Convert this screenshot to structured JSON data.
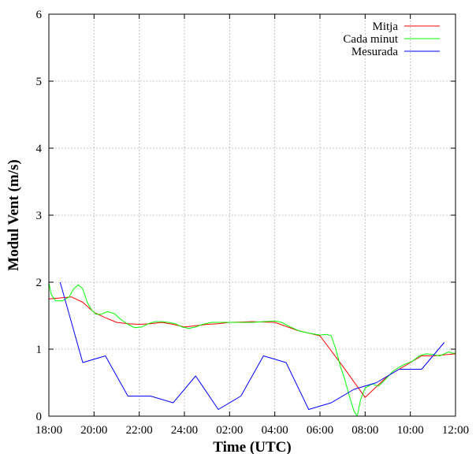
{
  "chart_data": {
    "type": "line",
    "xlabel": "Time (UTC)",
    "ylabel": "Modul Vent (m/s)",
    "xlim": [
      0,
      18
    ],
    "ylim": [
      0,
      6
    ],
    "x_tick_labels": [
      "18:00",
      "20:00",
      "22:00",
      "24:00",
      "02:00",
      "04:00",
      "06:00",
      "08:00",
      "10:00",
      "12:00"
    ],
    "y_tick_labels": [
      "0",
      "1",
      "2",
      "3",
      "4",
      "5",
      "6"
    ],
    "grid": true,
    "legend_position": "top-right",
    "series": [
      {
        "name": "Mitja",
        "color": "#ff0000",
        "points": [
          [
            0.0,
            1.75
          ],
          [
            1.0,
            1.78
          ],
          [
            1.5,
            1.7
          ],
          [
            2.0,
            1.55
          ],
          [
            2.5,
            1.47
          ],
          [
            3.0,
            1.4
          ],
          [
            3.5,
            1.38
          ],
          [
            4.0,
            1.37
          ],
          [
            4.5,
            1.38
          ],
          [
            5.0,
            1.4
          ],
          [
            5.5,
            1.37
          ],
          [
            6.0,
            1.33
          ],
          [
            6.5,
            1.35
          ],
          [
            7.0,
            1.37
          ],
          [
            7.5,
            1.38
          ],
          [
            8.0,
            1.4
          ],
          [
            9.0,
            1.41
          ],
          [
            10.0,
            1.4
          ],
          [
            11.0,
            1.28
          ],
          [
            12.0,
            1.2
          ],
          [
            13.0,
            0.75
          ],
          [
            14.0,
            0.28
          ],
          [
            15.0,
            0.6
          ],
          [
            16.0,
            0.8
          ],
          [
            16.5,
            0.9
          ],
          [
            17.0,
            0.9
          ],
          [
            18.0,
            0.93
          ]
        ]
      },
      {
        "name": "Cada minut",
        "color": "#00ff00",
        "points": [
          [
            0.0,
            2.0
          ],
          [
            0.1,
            1.82
          ],
          [
            0.3,
            1.72
          ],
          [
            0.6,
            1.72
          ],
          [
            0.9,
            1.78
          ],
          [
            1.1,
            1.9
          ],
          [
            1.3,
            1.96
          ],
          [
            1.5,
            1.9
          ],
          [
            1.7,
            1.7
          ],
          [
            1.9,
            1.58
          ],
          [
            2.1,
            1.52
          ],
          [
            2.3,
            1.52
          ],
          [
            2.6,
            1.56
          ],
          [
            2.9,
            1.53
          ],
          [
            3.2,
            1.44
          ],
          [
            3.5,
            1.37
          ],
          [
            3.8,
            1.32
          ],
          [
            4.1,
            1.33
          ],
          [
            4.4,
            1.38
          ],
          [
            4.7,
            1.41
          ],
          [
            5.0,
            1.41
          ],
          [
            5.3,
            1.4
          ],
          [
            5.6,
            1.38
          ],
          [
            5.9,
            1.33
          ],
          [
            6.2,
            1.31
          ],
          [
            6.5,
            1.33
          ],
          [
            6.8,
            1.37
          ],
          [
            7.2,
            1.4
          ],
          [
            7.6,
            1.4
          ],
          [
            8.0,
            1.4
          ],
          [
            8.5,
            1.4
          ],
          [
            9.0,
            1.4
          ],
          [
            9.5,
            1.41
          ],
          [
            10.0,
            1.42
          ],
          [
            10.3,
            1.4
          ],
          [
            10.7,
            1.33
          ],
          [
            11.1,
            1.27
          ],
          [
            11.5,
            1.24
          ],
          [
            12.0,
            1.21
          ],
          [
            12.3,
            1.22
          ],
          [
            12.5,
            1.2
          ],
          [
            12.7,
            1.0
          ],
          [
            12.9,
            0.75
          ],
          [
            13.1,
            0.55
          ],
          [
            13.3,
            0.3
          ],
          [
            13.5,
            0.08
          ],
          [
            13.65,
            0.0
          ],
          [
            13.8,
            0.25
          ],
          [
            14.0,
            0.42
          ],
          [
            14.3,
            0.48
          ],
          [
            14.6,
            0.45
          ],
          [
            14.9,
            0.55
          ],
          [
            15.2,
            0.66
          ],
          [
            15.5,
            0.73
          ],
          [
            15.8,
            0.78
          ],
          [
            16.1,
            0.82
          ],
          [
            16.4,
            0.9
          ],
          [
            16.7,
            0.93
          ],
          [
            17.0,
            0.92
          ],
          [
            17.3,
            0.9
          ],
          [
            17.5,
            0.93
          ],
          [
            17.7,
            0.96
          ],
          [
            17.85,
            0.94
          ],
          [
            18.0,
            0.94
          ]
        ]
      },
      {
        "name": "Mesurada",
        "color": "#0000ff",
        "points": [
          [
            0.5,
            2.0
          ],
          [
            1.5,
            0.8
          ],
          [
            2.5,
            0.9
          ],
          [
            3.5,
            0.3
          ],
          [
            4.5,
            0.3
          ],
          [
            5.5,
            0.2
          ],
          [
            6.5,
            0.6
          ],
          [
            7.5,
            0.1
          ],
          [
            8.5,
            0.3
          ],
          [
            9.5,
            0.9
          ],
          [
            10.5,
            0.8
          ],
          [
            11.5,
            0.1
          ],
          [
            12.5,
            0.2
          ],
          [
            13.5,
            0.4
          ],
          [
            14.5,
            0.5
          ],
          [
            15.5,
            0.7
          ],
          [
            16.5,
            0.7
          ],
          [
            17.5,
            1.1
          ]
        ]
      }
    ]
  }
}
